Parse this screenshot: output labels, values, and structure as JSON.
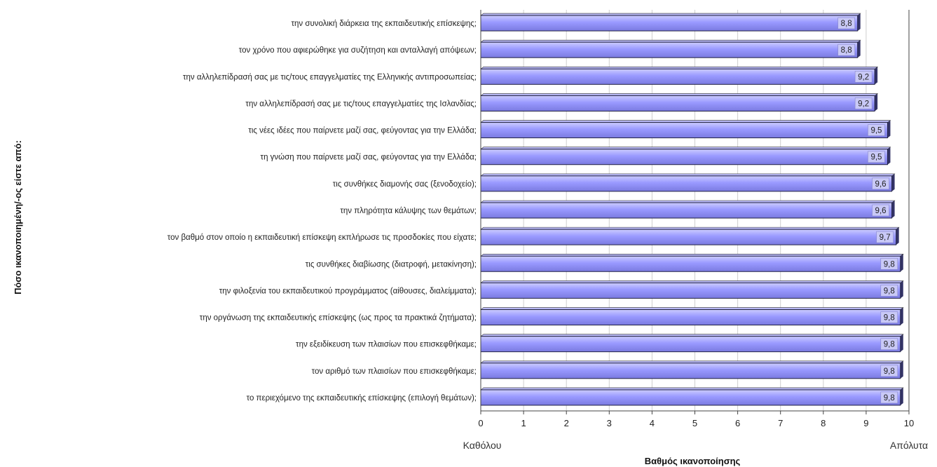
{
  "chart_data": {
    "type": "bar",
    "orientation": "horizontal",
    "categories": [
      "την συνολική διάρκεια της εκπαιδευτικής επίσκεψης;",
      "τον χρόνο που αφιερώθηκε για συζήτηση και ανταλλαγή απόψεων;",
      "την αλληλεπίδρασή σας με τις/τους επαγγελματίες της Ελληνικής αντιπροσωπείας;",
      "την αλληλεπίδρασή σας με τις/τους επαγγελματίες της Ισλανδίας;",
      "τις νέες ιδέες που παίρνετε μαζί σας, φεύγοντας για την Ελλάδα;",
      "τη γνώση που παίρνετε μαζί σας, φεύγοντας για την Ελλάδα;",
      "τις συνθήκες διαμονής σας (ξενοδοχείο);",
      "την πληρότητα κάλυψης των θεμάτων;",
      "τον βαθμό στον οποίο η εκπαιδευτική επίσκεψη εκπλήρωσε τις προσδοκίες που είχατε;",
      "τις συνθήκες διαβίωσης (διατροφή, μετακίνηση);",
      "την φιλοξενία του εκπαιδευτικού προγράμματος (αίθουσες, διαλείμματα);",
      "την οργάνωση της εκπαιδευτικής επίσκεψης (ως προς τα πρακτικά ζητήματα);",
      "την εξειδίκευση των πλαισίων που επισκεφθήκαμε;",
      "τον αριθμό των πλαισίων που επισκεφθήκαμε;",
      "το περιεχόμενο της εκπαιδευτικής επίσκεψης (επιλογή θεμάτων);"
    ],
    "values": [
      8.8,
      8.8,
      9.2,
      9.2,
      9.5,
      9.5,
      9.6,
      9.6,
      9.7,
      9.8,
      9.8,
      9.8,
      9.8,
      9.8,
      9.8
    ],
    "value_labels": [
      "8,8",
      "8,8",
      "9,2",
      "9,2",
      "9,5",
      "9,5",
      "9,6",
      "9,6",
      "9,7",
      "9,8",
      "9,8",
      "9,8",
      "9,8",
      "9,8",
      "9,8"
    ],
    "xticks": [
      "0",
      "1",
      "2",
      "3",
      "4",
      "5",
      "6",
      "7",
      "8",
      "9",
      "10"
    ],
    "xlim": [
      0,
      10
    ],
    "xlabel": "Βαθμός ικανοποίησης",
    "ylabel": "Πόσο ικανοποιημένη/-ος είστε από:",
    "scale_low_label": "Καθόλου",
    "scale_high_label": "Απόλυτα",
    "grid": true,
    "bar_color": "#9999ff",
    "bar_dark_color": "#333366"
  }
}
